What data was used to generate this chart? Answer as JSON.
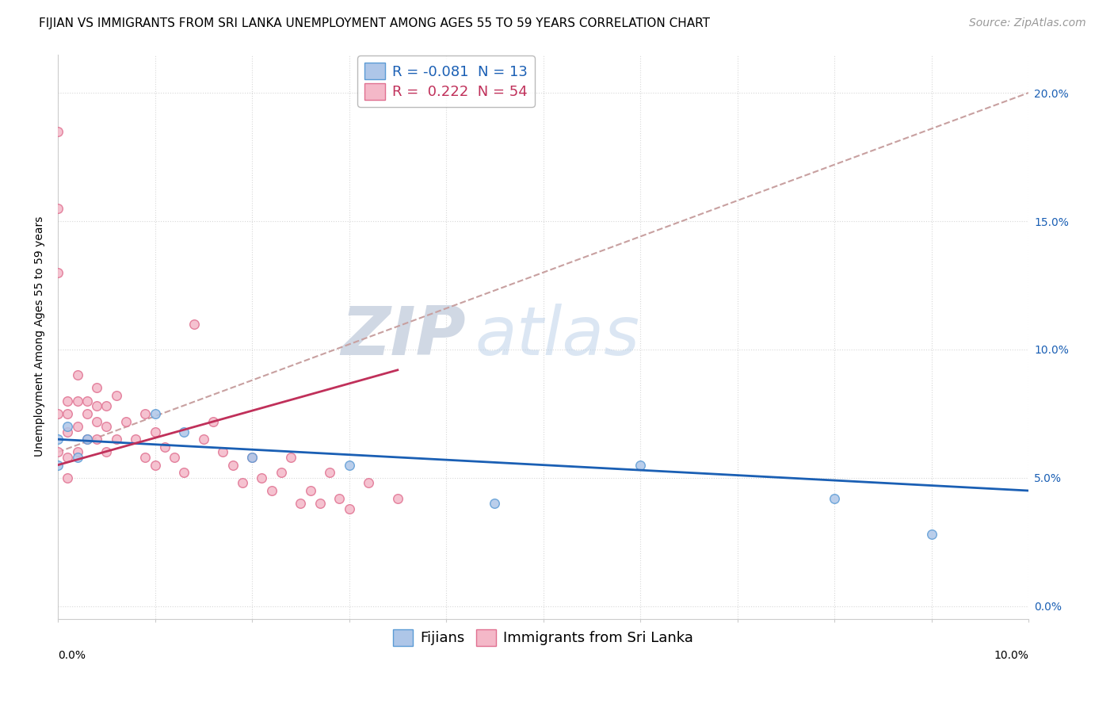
{
  "title": "FIJIAN VS IMMIGRANTS FROM SRI LANKA UNEMPLOYMENT AMONG AGES 55 TO 59 YEARS CORRELATION CHART",
  "source": "Source: ZipAtlas.com",
  "ylabel": "Unemployment Among Ages 55 to 59 years",
  "ylabel_right_ticks": [
    "0.0%",
    "5.0%",
    "10.0%",
    "15.0%",
    "20.0%"
  ],
  "ylabel_right_vals": [
    0.0,
    0.05,
    0.1,
    0.15,
    0.2
  ],
  "xlim": [
    0.0,
    0.1
  ],
  "ylim": [
    -0.005,
    0.215
  ],
  "fijian_R": "-0.081",
  "fijian_N": "13",
  "srilanka_R": "0.222",
  "srilanka_N": "54",
  "fijian_color": "#aec6e8",
  "fijian_edge_color": "#5b9bd5",
  "srilanka_color": "#f4b8c8",
  "srilanka_edge_color": "#e07090",
  "fijian_line_color": "#1a5fb4",
  "srilanka_line_color": "#c0305a",
  "trend_line_color": "#c8a0a0",
  "background_color": "#ffffff",
  "watermark_zip": "ZIP",
  "watermark_atlas": "atlas",
  "fijians_x": [
    0.0,
    0.0,
    0.001,
    0.002,
    0.003,
    0.01,
    0.013,
    0.02,
    0.03,
    0.045,
    0.06,
    0.08,
    0.09
  ],
  "fijians_y": [
    0.065,
    0.055,
    0.07,
    0.058,
    0.065,
    0.075,
    0.068,
    0.058,
    0.055,
    0.04,
    0.055,
    0.042,
    0.028
  ],
  "srilanka_x": [
    0.0,
    0.0,
    0.0,
    0.0,
    0.0,
    0.001,
    0.001,
    0.001,
    0.001,
    0.001,
    0.002,
    0.002,
    0.002,
    0.002,
    0.003,
    0.003,
    0.003,
    0.004,
    0.004,
    0.004,
    0.004,
    0.005,
    0.005,
    0.005,
    0.006,
    0.006,
    0.007,
    0.008,
    0.009,
    0.009,
    0.01,
    0.01,
    0.011,
    0.012,
    0.013,
    0.014,
    0.015,
    0.016,
    0.017,
    0.018,
    0.019,
    0.02,
    0.021,
    0.022,
    0.023,
    0.024,
    0.025,
    0.026,
    0.027,
    0.028,
    0.029,
    0.03,
    0.032,
    0.035
  ],
  "srilanka_y": [
    0.185,
    0.155,
    0.13,
    0.075,
    0.06,
    0.08,
    0.075,
    0.068,
    0.058,
    0.05,
    0.09,
    0.08,
    0.07,
    0.06,
    0.08,
    0.075,
    0.065,
    0.085,
    0.078,
    0.072,
    0.065,
    0.078,
    0.07,
    0.06,
    0.082,
    0.065,
    0.072,
    0.065,
    0.058,
    0.075,
    0.055,
    0.068,
    0.062,
    0.058,
    0.052,
    0.11,
    0.065,
    0.072,
    0.06,
    0.055,
    0.048,
    0.058,
    0.05,
    0.045,
    0.052,
    0.058,
    0.04,
    0.045,
    0.04,
    0.052,
    0.042,
    0.038,
    0.048,
    0.042
  ],
  "marker_size": 70,
  "title_fontsize": 11,
  "axis_label_fontsize": 10,
  "tick_fontsize": 10,
  "legend_fontsize": 13,
  "source_fontsize": 10
}
